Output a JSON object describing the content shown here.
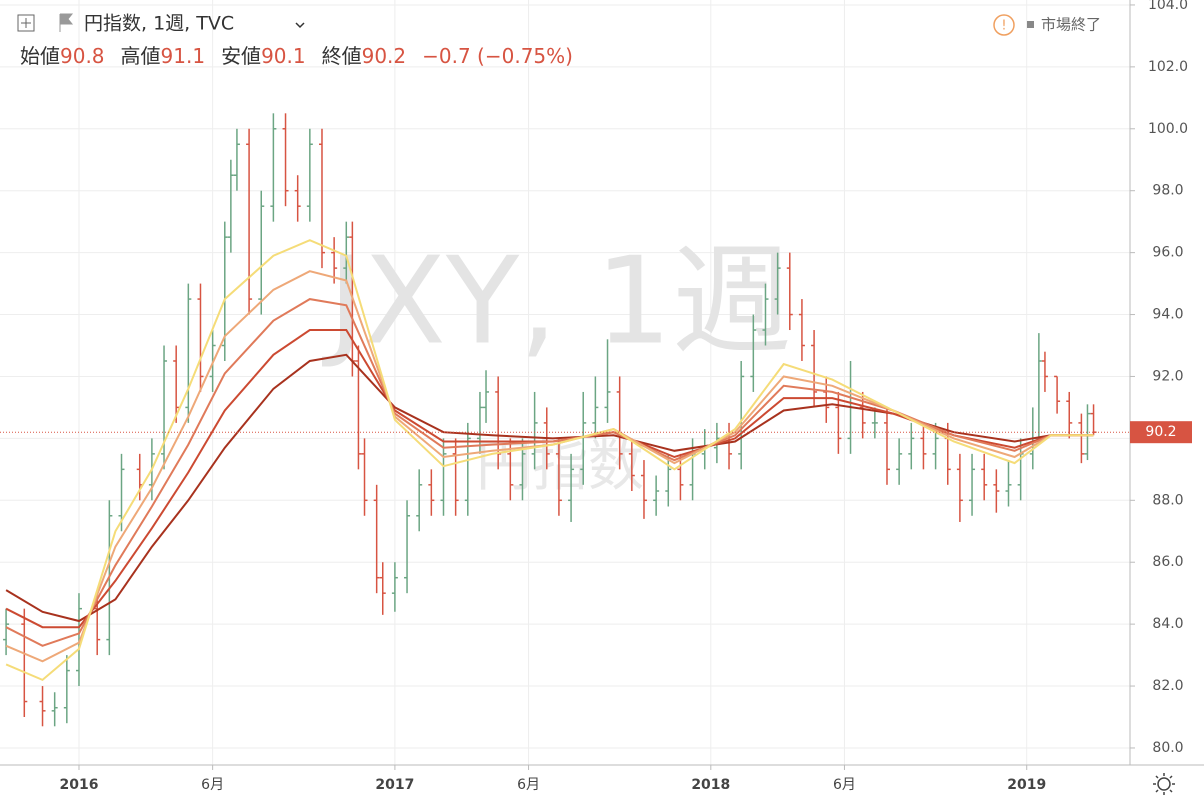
{
  "chart_data": {
    "type": "ohlc",
    "watermark": "JXY, 1週",
    "watermark_subtitle": "円指数",
    "status": "市場終了",
    "legend": {
      "symbol": "円指数, 1週, TVC",
      "open_label": "始値",
      "open": 90.8,
      "high_label": "高値",
      "high": 91.1,
      "low_label": "安値",
      "low": 90.1,
      "close_label": "終値",
      "close": 90.2,
      "change": "−0.7 (−0.75%)"
    },
    "xlim": [
      -1,
      185
    ],
    "xticks": [
      {
        "value": 12,
        "label": "2016"
      },
      {
        "value": 34,
        "label": "6月"
      },
      {
        "value": 64,
        "label": "2017"
      },
      {
        "value": 86,
        "label": "6月"
      },
      {
        "value": 116,
        "label": "2018"
      },
      {
        "value": 138,
        "label": "6月"
      },
      {
        "value": 168,
        "label": "2019"
      }
    ],
    "ylim": [
      79.45,
      104.16
    ],
    "yticks": [
      {
        "value": 80,
        "label": "80.0"
      },
      {
        "value": 82,
        "label": "82.0"
      },
      {
        "value": 84,
        "label": "84.0"
      },
      {
        "value": 86,
        "label": "86.0"
      },
      {
        "value": 88,
        "label": "88.0"
      },
      {
        "value": 90,
        "label": "90.0"
      },
      {
        "value": 92,
        "label": "92.0"
      },
      {
        "value": 94,
        "label": "94.0"
      },
      {
        "value": 96,
        "label": "96.0"
      },
      {
        "value": 98,
        "label": "98.0"
      },
      {
        "value": 100,
        "label": "100.0"
      },
      {
        "value": 102,
        "label": "102.0"
      },
      {
        "value": 104,
        "label": "104.0"
      }
    ],
    "grid": true,
    "up_color": "#6ba583",
    "down_color": "#d75442",
    "price_line_color": "#d75442",
    "x": [
      0,
      3,
      6,
      8,
      10,
      12,
      15,
      17,
      19,
      22,
      24,
      26,
      28,
      30,
      32,
      34,
      36,
      37,
      38,
      40,
      42,
      44,
      46,
      48,
      50,
      52,
      54,
      56,
      57,
      58,
      59,
      61,
      62,
      64,
      66,
      68,
      70,
      72,
      74,
      76,
      78,
      79,
      81,
      83,
      85,
      87,
      89,
      91,
      93,
      95,
      97,
      99,
      101,
      103,
      105,
      107,
      109,
      111,
      113,
      115,
      117,
      119,
      121,
      123,
      125,
      127,
      129,
      131,
      133,
      135,
      137,
      139,
      141,
      143,
      145,
      147,
      149,
      151,
      153,
      155,
      157,
      159,
      161,
      163,
      165,
      167,
      169,
      170,
      171,
      173,
      175,
      177,
      178,
      179
    ],
    "open": [
      83.5,
      84,
      81.5,
      81.2,
      81.3,
      82.5,
      84.5,
      83.5,
      87.5,
      89,
      88.5,
      89.5,
      92.5,
      91,
      94.5,
      92,
      93,
      96.5,
      98.5,
      99.5,
      94.5,
      97.5,
      100,
      98,
      97.5,
      99.5,
      96,
      95.5,
      96.5,
      92.5,
      89.5,
      88,
      85.5,
      85,
      85.5,
      87.5,
      88.5,
      88,
      89.5,
      88,
      90,
      91,
      91.5,
      89.5,
      88.5,
      89.5,
      90.5,
      89.5,
      88,
      89,
      90.5,
      91,
      91.5,
      89.5,
      88.8,
      88,
      88.3,
      89,
      88.5,
      89.5,
      89.7,
      90,
      89.5,
      92,
      93.5,
      94.5,
      95.5,
      94,
      93,
      91.5,
      91,
      90,
      91,
      90.5,
      90.5,
      89,
      89.5,
      90,
      89.5,
      90,
      89,
      88,
      89,
      88.5,
      88.3,
      88.5,
      89.5,
      90,
      92.5,
      92,
      91.2,
      90.5,
      89.5,
      90.8
    ],
    "high": [
      84.5,
      84.5,
      82,
      81.8,
      83,
      85,
      85,
      88,
      89.5,
      89.5,
      90,
      93,
      93,
      95,
      95,
      93.5,
      97,
      99,
      100,
      100,
      98,
      100.5,
      100.5,
      98.5,
      100,
      100,
      96.5,
      97,
      97,
      93,
      90,
      88.5,
      86,
      86,
      88,
      89,
      89,
      90,
      90,
      90.5,
      91.5,
      92.2,
      92,
      90,
      90,
      91.5,
      91,
      90,
      89.5,
      91.5,
      92,
      93.2,
      92,
      90,
      89.3,
      88.8,
      89.5,
      89.5,
      90,
      90.3,
      90.5,
      90.5,
      92.5,
      94,
      95,
      96,
      96,
      94.5,
      93.5,
      92,
      91.5,
      92.5,
      91.5,
      91,
      91,
      90,
      90.5,
      90.5,
      90.5,
      90.5,
      89.5,
      89.5,
      89.5,
      89,
      89.3,
      90,
      91,
      93.4,
      92.8,
      92,
      91.5,
      90.8,
      91.1,
      91.1
    ],
    "low": [
      83,
      81,
      80.7,
      80.7,
      80.8,
      82,
      83,
      83,
      87,
      88,
      88,
      89,
      90.5,
      90.5,
      91.5,
      91.5,
      92.5,
      96,
      98,
      94,
      94,
      97,
      97.5,
      97,
      97,
      95.5,
      95,
      95,
      92,
      89,
      87.5,
      85,
      84.3,
      84.4,
      85,
      87,
      87.5,
      87.5,
      87.5,
      87.5,
      89.5,
      90.5,
      89,
      88,
      88,
      89,
      89,
      87.5,
      87.3,
      88.5,
      90,
      90.5,
      89,
      88.3,
      87.4,
      87.5,
      87.8,
      88,
      88,
      89,
      89.2,
      89,
      89,
      91.5,
      93,
      94,
      93.5,
      92.5,
      91,
      90.5,
      89.5,
      89.5,
      90,
      90,
      88.5,
      88.5,
      89,
      89,
      89,
      88.5,
      87.3,
      87.5,
      88,
      87.6,
      87.8,
      88,
      89,
      89.8,
      91.5,
      90.8,
      90,
      89.2,
      89.3,
      90.1
    ],
    "close": [
      84,
      81.5,
      81.2,
      81.3,
      82.5,
      84.5,
      83.5,
      87.5,
      89,
      88.5,
      89.5,
      92.5,
      91,
      94.5,
      92,
      93,
      96.5,
      98.5,
      99.5,
      94.5,
      97.5,
      100,
      98,
      97.5,
      99.5,
      96,
      95.5,
      96.5,
      92.5,
      89.5,
      88,
      85.5,
      85,
      85.5,
      87.5,
      88.5,
      88,
      89.5,
      88,
      90,
      91,
      91.5,
      89.5,
      88.5,
      89.5,
      90.5,
      89.5,
      88,
      89,
      90.5,
      91,
      91.5,
      89.5,
      88.8,
      88,
      88.3,
      89,
      88.5,
      89.5,
      89.7,
      90,
      89.5,
      92,
      93.5,
      94.5,
      95.5,
      94,
      93,
      91.5,
      91,
      90,
      91,
      90.5,
      90.5,
      89,
      89.5,
      90,
      89.5,
      90,
      89,
      88,
      89,
      88.5,
      88.3,
      88.5,
      89.5,
      90,
      92.5,
      92,
      91.2,
      90.5,
      89.5,
      90.8,
      90.2
    ],
    "ma_x": [
      0,
      6,
      12,
      18,
      24,
      30,
      36,
      44,
      50,
      56,
      64,
      72,
      80,
      90,
      100,
      110,
      120,
      128,
      136,
      146,
      156,
      166,
      172,
      179
    ],
    "moving_averages": [
      {
        "color": "#a8321e",
        "values": [
          85.1,
          84.4,
          84.1,
          84.8,
          86.5,
          88,
          89.7,
          91.6,
          92.5,
          92.7,
          91,
          90.2,
          90.1,
          90,
          90.1,
          89.6,
          89.9,
          90.9,
          91.1,
          90.8,
          90.2,
          89.9,
          90.1,
          90.1
        ]
      },
      {
        "color": "#cc4a32",
        "values": [
          84.5,
          83.9,
          83.9,
          85.4,
          87.1,
          88.9,
          90.9,
          92.7,
          93.5,
          93.5,
          90.9,
          89.9,
          89.9,
          89.9,
          90.2,
          89.4,
          90,
          91.3,
          91.3,
          90.8,
          90.1,
          89.7,
          90.1,
          90.1
        ]
      },
      {
        "color": "#e07a5a",
        "values": [
          83.9,
          83.3,
          83.7,
          85.9,
          87.8,
          89.8,
          92.1,
          93.8,
          94.5,
          94.3,
          90.8,
          89.7,
          89.8,
          89.9,
          90.2,
          89.3,
          90.1,
          91.7,
          91.5,
          90.9,
          90.1,
          89.6,
          90.1,
          90.1
        ]
      },
      {
        "color": "#eea878",
        "values": [
          83.3,
          82.8,
          83.4,
          86.5,
          88.4,
          90.7,
          93.3,
          94.8,
          95.4,
          95.1,
          90.7,
          89.4,
          89.6,
          89.8,
          90.3,
          89.2,
          90.2,
          92,
          91.7,
          90.9,
          90,
          89.4,
          90.1,
          90.1
        ]
      },
      {
        "color": "#f5dc78",
        "values": [
          82.7,
          82.2,
          83.2,
          87,
          89,
          91.6,
          94.5,
          95.9,
          96.4,
          95.9,
          90.6,
          89.1,
          89.5,
          89.8,
          90.3,
          89,
          90.3,
          92.4,
          91.9,
          90.9,
          89.9,
          89.2,
          90.1,
          90.1
        ]
      }
    ]
  }
}
